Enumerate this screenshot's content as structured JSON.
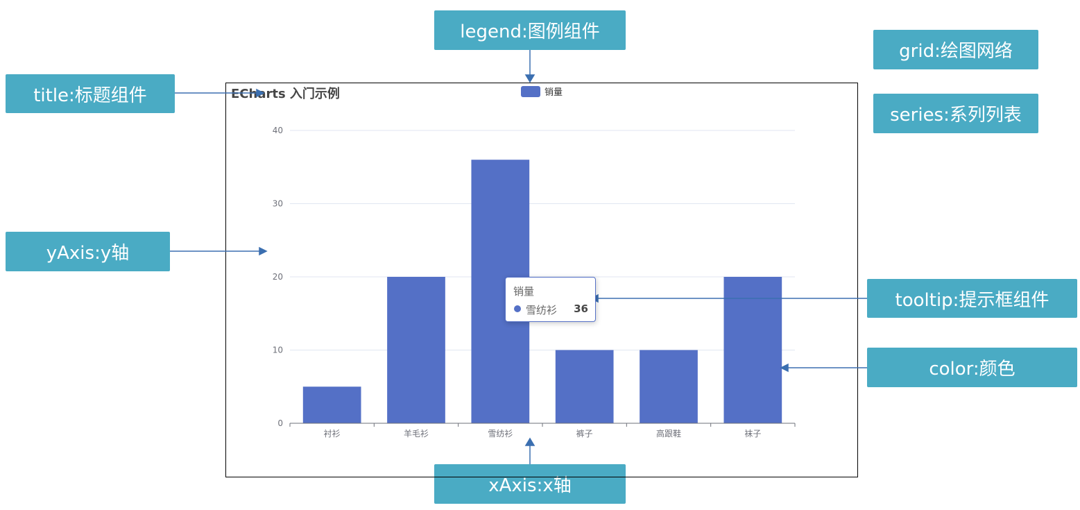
{
  "callouts": {
    "legend": "legend:图例组件",
    "grid": "grid:绘图网络",
    "title": "title:标题组件",
    "series": "series:系列列表",
    "yaxis": "yAxis:y轴",
    "tooltip": "tooltip:提示框组件",
    "color": "color:颜色",
    "xaxis": "xAxis:x轴"
  },
  "colors": {
    "callout_bg": "#4aabc4",
    "bar": "#5470c6",
    "arrow": "#3b6fb0"
  },
  "chart_data": {
    "type": "bar",
    "title": "ECharts 入门示例",
    "categories": [
      "衬衫",
      "羊毛衫",
      "雪纺衫",
      "裤子",
      "高跟鞋",
      "袜子"
    ],
    "series": [
      {
        "name": "销量",
        "values": [
          5,
          20,
          36,
          10,
          10,
          20
        ]
      }
    ],
    "ylim": [
      0,
      40
    ],
    "yticks": [
      0,
      10,
      20,
      30,
      40
    ],
    "grid": true,
    "legend_position": "top-center"
  },
  "tooltip": {
    "title": "销量",
    "category": "雪纺衫",
    "value": "36"
  }
}
